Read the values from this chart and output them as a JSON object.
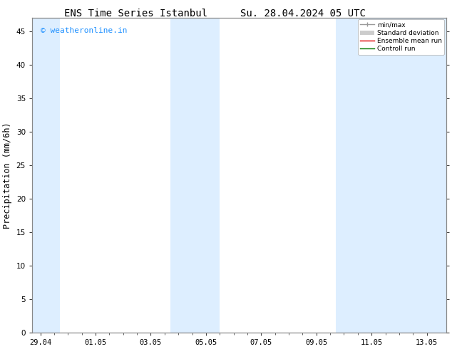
{
  "title_left": "ENS Time Series Istanbul",
  "title_right": "Su. 28.04.2024 05 UTC",
  "ylabel": "Precipitation (mm/6h)",
  "background_color": "#ffffff",
  "plot_bg_color": "#ffffff",
  "x_tick_labels": [
    "29.04",
    "01.05",
    "03.05",
    "05.05",
    "07.05",
    "09.05",
    "11.05",
    "13.05"
  ],
  "x_tick_positions": [
    0,
    2,
    4,
    6,
    8,
    10,
    12,
    14
  ],
  "x_minor_positions": [
    0.5,
    1,
    1.5,
    2.5,
    3,
    3.5,
    4.5,
    5,
    5.5,
    6.5,
    7,
    7.5,
    8.5,
    9,
    9.5,
    10.5,
    11,
    11.5,
    12.5,
    13,
    13.5
  ],
  "ylim": [
    0,
    47
  ],
  "yticks": [
    0,
    5,
    10,
    15,
    20,
    25,
    30,
    35,
    40,
    45
  ],
  "xlim": [
    -0.3,
    14.7
  ],
  "shaded_bands": [
    {
      "x_start": -0.3,
      "x_end": 0.7,
      "color": "#ddeeff"
    },
    {
      "x_start": 4.7,
      "x_end": 6.5,
      "color": "#ddeeff"
    },
    {
      "x_start": 10.7,
      "x_end": 14.7,
      "color": "#ddeeff"
    }
  ],
  "legend_items": [
    {
      "label": "min/max",
      "color": "#999999",
      "lw": 1.0
    },
    {
      "label": "Standard deviation",
      "color": "#cccccc",
      "lw": 6
    },
    {
      "label": "Ensemble mean run",
      "color": "#dd0000",
      "lw": 1.0
    },
    {
      "label": "Controll run",
      "color": "#007700",
      "lw": 1.0
    }
  ],
  "watermark": "© weatheronline.in",
  "watermark_color": "#1e90ff",
  "watermark_fontsize": 8,
  "title_fontsize": 10,
  "tick_fontsize": 7.5,
  "ylabel_fontsize": 8.5,
  "spine_color": "#888888",
  "tick_color": "#444444"
}
